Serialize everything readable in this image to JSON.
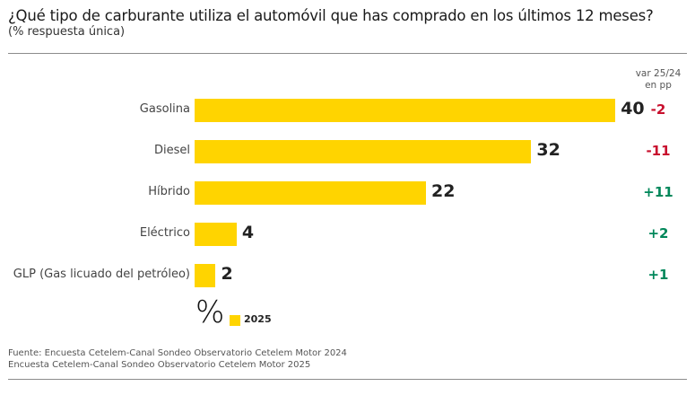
{
  "chart_data": {
    "type": "bar",
    "orientation": "horizontal",
    "title": "¿Qué tipo de carburante utiliza el automóvil que has comprado en los últimos 12 meses?",
    "subtitle": "(% respuesta única)",
    "categories": [
      "Gasolina",
      "Diesel",
      "Híbrido",
      "Eléctrico",
      "GLP (Gas licuado del petróleo)"
    ],
    "series": [
      {
        "name": "2025",
        "color": "#FFD400",
        "values": [
          40,
          32,
          22,
          4,
          2
        ]
      }
    ],
    "variation": {
      "header_line1": "var 25/24",
      "header_line2": "en pp",
      "values": [
        "-2",
        "-11",
        "+11",
        "+2",
        "+1"
      ],
      "colors": {
        "negative": "#C8102E",
        "positive": "#00875A"
      }
    },
    "unit_symbol": "%",
    "legend": {
      "position": "bottom-left",
      "entries": [
        "2025"
      ]
    },
    "xlim": [
      0,
      40
    ],
    "grid": false,
    "xlabel": "",
    "ylabel": ""
  },
  "footer": {
    "source_line1": "Fuente: Encuesta Cetelem-Canal Sondeo Observatorio Cetelem Motor 2024",
    "source_line2": "Encuesta Cetelem-Canal Sondeo Observatorio Cetelem Motor 2025"
  }
}
